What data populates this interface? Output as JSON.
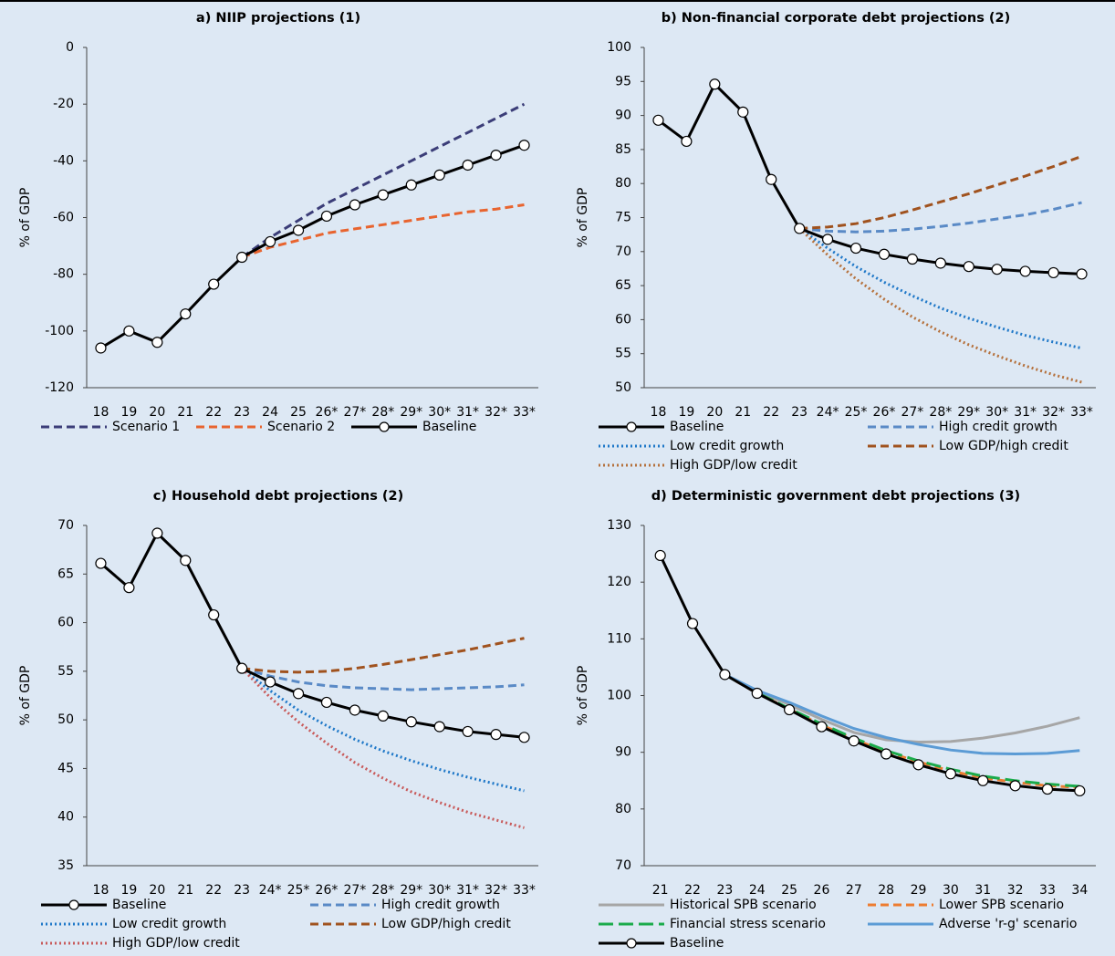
{
  "chart_data": [
    {
      "type": "line",
      "title": "a) NIIP projections (1)",
      "y_label": "% of GDP",
      "categories": [
        "18",
        "19",
        "20",
        "21",
        "22",
        "23",
        "24",
        "25",
        "26*",
        "27*",
        "28*",
        "29*",
        "30*",
        "31*",
        "32*",
        "33*"
      ],
      "ylim": [
        -120,
        0
      ],
      "yticks": [
        0,
        -20,
        -40,
        -60,
        -80,
        -100,
        -120
      ],
      "series": [
        {
          "name": "Scenario 1",
          "color": "#3b3d78",
          "style": "dashed",
          "markers": false,
          "values": [
            null,
            null,
            null,
            null,
            null,
            -74,
            -67,
            -61,
            -55,
            -50,
            -45,
            -40,
            -35,
            -30,
            -25,
            -20
          ]
        },
        {
          "name": "Scenario 2",
          "color": "#e8642f",
          "style": "dashed",
          "markers": false,
          "values": [
            null,
            null,
            null,
            null,
            null,
            -74,
            -70.5,
            -68,
            -65.5,
            -64,
            -62.5,
            -61,
            -59.5,
            -58,
            -57,
            -55.5
          ]
        },
        {
          "name": "Baseline",
          "color": "#000000",
          "style": "solid",
          "markers": true,
          "values": [
            -106,
            -100,
            -104,
            -94,
            -83.5,
            -74,
            -68.5,
            -64.5,
            -59.5,
            -55.5,
            -52,
            -48.5,
            -45,
            -41.5,
            -38,
            -34.5
          ]
        }
      ]
    },
    {
      "type": "line",
      "title": "b) Non-financial corporate debt projections (2)",
      "y_label": "% of GDP",
      "categories": [
        "18",
        "19",
        "20",
        "21",
        "22",
        "23",
        "24*",
        "25*",
        "26*",
        "27*",
        "28*",
        "29*",
        "30*",
        "31*",
        "32*",
        "33*"
      ],
      "ylim": [
        50,
        100
      ],
      "yticks": [
        50,
        55,
        60,
        65,
        70,
        75,
        80,
        85,
        90,
        95,
        100
      ],
      "series": [
        {
          "name": "Baseline",
          "color": "#000000",
          "style": "solid",
          "markers": true,
          "values": [
            89.3,
            86.2,
            94.6,
            90.5,
            80.6,
            73.4,
            71.8,
            70.5,
            69.6,
            68.9,
            68.3,
            67.8,
            67.4,
            67.1,
            66.9,
            66.7
          ]
        },
        {
          "name": "High credit growth",
          "color": "#5a8ac6",
          "style": "dashed",
          "markers": false,
          "values": [
            null,
            null,
            null,
            null,
            null,
            73.4,
            73,
            72.9,
            73,
            73.3,
            73.7,
            74.2,
            74.8,
            75.4,
            76.2,
            77.2
          ]
        },
        {
          "name": "Low credit growth",
          "color": "#1f78c8",
          "style": "dotted",
          "markers": false,
          "values": [
            null,
            null,
            null,
            null,
            null,
            73.4,
            70.5,
            67.8,
            65.5,
            63.5,
            61.7,
            60.2,
            58.9,
            57.7,
            56.7,
            55.8
          ]
        },
        {
          "name": "Low GDP/high credit",
          "color": "#a0521e",
          "style": "dashed",
          "markers": false,
          "values": [
            null,
            null,
            null,
            null,
            null,
            73.4,
            73.6,
            74.1,
            75,
            76.1,
            77.3,
            78.5,
            79.8,
            81.1,
            82.5,
            84
          ]
        },
        {
          "name": "High GDP/low credit",
          "color": "#b5713c",
          "style": "dotted",
          "markers": false,
          "values": [
            null,
            null,
            null,
            null,
            null,
            73.4,
            69.5,
            66,
            63,
            60.4,
            58.2,
            56.3,
            54.7,
            53.2,
            51.9,
            50.8
          ]
        }
      ]
    },
    {
      "type": "line",
      "title": "c) Household debt projections (2)",
      "y_label": "% of GDP",
      "categories": [
        "18",
        "19",
        "20",
        "21",
        "22",
        "23",
        "24*",
        "25*",
        "26*",
        "27*",
        "28*",
        "29*",
        "30*",
        "31*",
        "32*",
        "33*"
      ],
      "ylim": [
        35,
        70
      ],
      "yticks": [
        35,
        40,
        45,
        50,
        55,
        60,
        65,
        70
      ],
      "series": [
        {
          "name": "Baseline",
          "color": "#000000",
          "style": "solid",
          "markers": true,
          "values": [
            66.1,
            63.6,
            69.2,
            66.4,
            60.8,
            55.3,
            53.9,
            52.7,
            51.8,
            51,
            50.4,
            49.8,
            49.3,
            48.8,
            48.5,
            48.2
          ]
        },
        {
          "name": "High credit growth",
          "color": "#5a8ac6",
          "style": "dashed",
          "markers": false,
          "values": [
            null,
            null,
            null,
            null,
            null,
            55.3,
            54.5,
            53.9,
            53.5,
            53.3,
            53.2,
            53.1,
            53.2,
            53.3,
            53.4,
            53.6
          ]
        },
        {
          "name": "Low credit growth",
          "color": "#1f78c8",
          "style": "dotted",
          "markers": false,
          "values": [
            null,
            null,
            null,
            null,
            null,
            55.3,
            53,
            51,
            49.4,
            48,
            46.8,
            45.8,
            44.9,
            44.1,
            43.4,
            42.7
          ]
        },
        {
          "name": "Low GDP/high credit",
          "color": "#a0521e",
          "style": "dashed",
          "markers": false,
          "values": [
            null,
            null,
            null,
            null,
            null,
            55.3,
            55,
            54.9,
            55,
            55.3,
            55.7,
            56.2,
            56.7,
            57.2,
            57.8,
            58.4
          ]
        },
        {
          "name": "High GDP/low credit",
          "color": "#c85a5a",
          "style": "dotted",
          "markers": false,
          "values": [
            null,
            null,
            null,
            null,
            null,
            55.3,
            52.3,
            49.8,
            47.6,
            45.6,
            44,
            42.6,
            41.5,
            40.5,
            39.7,
            38.9
          ]
        }
      ]
    },
    {
      "type": "line",
      "title": "d) Deterministic government debt projections (3)",
      "y_label": "% of GDP",
      "categories": [
        "21",
        "22",
        "23",
        "24",
        "25",
        "26",
        "27",
        "28",
        "29",
        "30",
        "31",
        "32",
        "33",
        "34"
      ],
      "ylim": [
        70,
        130
      ],
      "yticks": [
        70,
        80,
        90,
        100,
        110,
        120,
        130
      ],
      "series": [
        {
          "name": "Historical SPB scenario",
          "color": "#a6a6a6",
          "style": "solid",
          "markers": false,
          "values": [
            null,
            null,
            103.7,
            100.8,
            98.4,
            95.8,
            93.5,
            92.2,
            91.8,
            91.9,
            92.5,
            93.4,
            94.6,
            96.1
          ]
        },
        {
          "name": "Lower SPB scenario",
          "color": "#ed7d31",
          "style": "dashed",
          "markers": false,
          "values": [
            null,
            null,
            103.7,
            100.4,
            97.6,
            94.8,
            92.3,
            90.1,
            88.3,
            86.7,
            85.5,
            84.7,
            84.1,
            83.8
          ]
        },
        {
          "name": "Financial stress scenario",
          "color": "#1aab4b",
          "style": "longdash",
          "markers": false,
          "values": [
            null,
            null,
            103.7,
            100.5,
            97.7,
            95,
            92.5,
            90.3,
            88.5,
            87,
            85.8,
            85,
            84.4,
            84
          ]
        },
        {
          "name": "Adverse 'r-g' scenario",
          "color": "#5b9bd5",
          "style": "solid",
          "markers": false,
          "values": [
            null,
            null,
            103.7,
            100.9,
            98.8,
            96.4,
            94.2,
            92.6,
            91.4,
            90.4,
            89.8,
            89.7,
            89.8,
            90.3
          ]
        },
        {
          "name": "Baseline",
          "color": "#000000",
          "style": "solid",
          "markers": true,
          "values": [
            124.7,
            112.7,
            103.7,
            100.4,
            97.5,
            94.5,
            92,
            89.7,
            87.8,
            86.2,
            85,
            84.1,
            83.5,
            83.2
          ]
        }
      ]
    }
  ]
}
